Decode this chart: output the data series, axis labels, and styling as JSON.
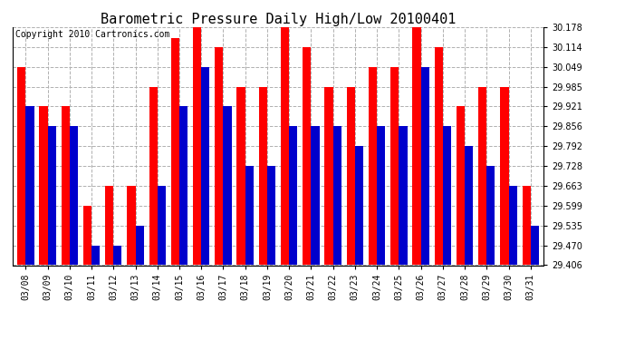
{
  "title": "Barometric Pressure Daily High/Low 20100401",
  "copyright": "Copyright 2010 Cartronics.com",
  "dates": [
    "03/08",
    "03/09",
    "03/10",
    "03/11",
    "03/12",
    "03/13",
    "03/14",
    "03/15",
    "03/16",
    "03/17",
    "03/18",
    "03/19",
    "03/20",
    "03/21",
    "03/22",
    "03/23",
    "03/24",
    "03/25",
    "03/26",
    "03/27",
    "03/28",
    "03/29",
    "03/30",
    "03/31"
  ],
  "highs": [
    30.049,
    29.921,
    29.921,
    29.599,
    29.663,
    29.663,
    29.985,
    30.143,
    30.178,
    30.114,
    29.985,
    29.985,
    30.178,
    30.114,
    29.985,
    29.985,
    30.049,
    30.049,
    30.178,
    30.114,
    29.921,
    29.985,
    29.985,
    29.663
  ],
  "lows": [
    29.921,
    29.856,
    29.856,
    29.47,
    29.47,
    29.535,
    29.663,
    29.921,
    30.049,
    29.921,
    29.728,
    29.728,
    29.856,
    29.856,
    29.856,
    29.792,
    29.856,
    29.856,
    30.049,
    29.856,
    29.792,
    29.728,
    29.663,
    29.535
  ],
  "ymin": 29.406,
  "ymax": 30.178,
  "yticks": [
    29.406,
    29.47,
    29.535,
    29.599,
    29.663,
    29.728,
    29.792,
    29.856,
    29.921,
    29.985,
    30.049,
    30.114,
    30.178
  ],
  "bar_width": 0.38,
  "high_color": "#ff0000",
  "low_color": "#0000cc",
  "bg_color": "#ffffff",
  "grid_color": "#b0b0b0",
  "title_fontsize": 11,
  "copyright_fontsize": 7,
  "figwidth": 6.9,
  "figheight": 3.75,
  "dpi": 100
}
